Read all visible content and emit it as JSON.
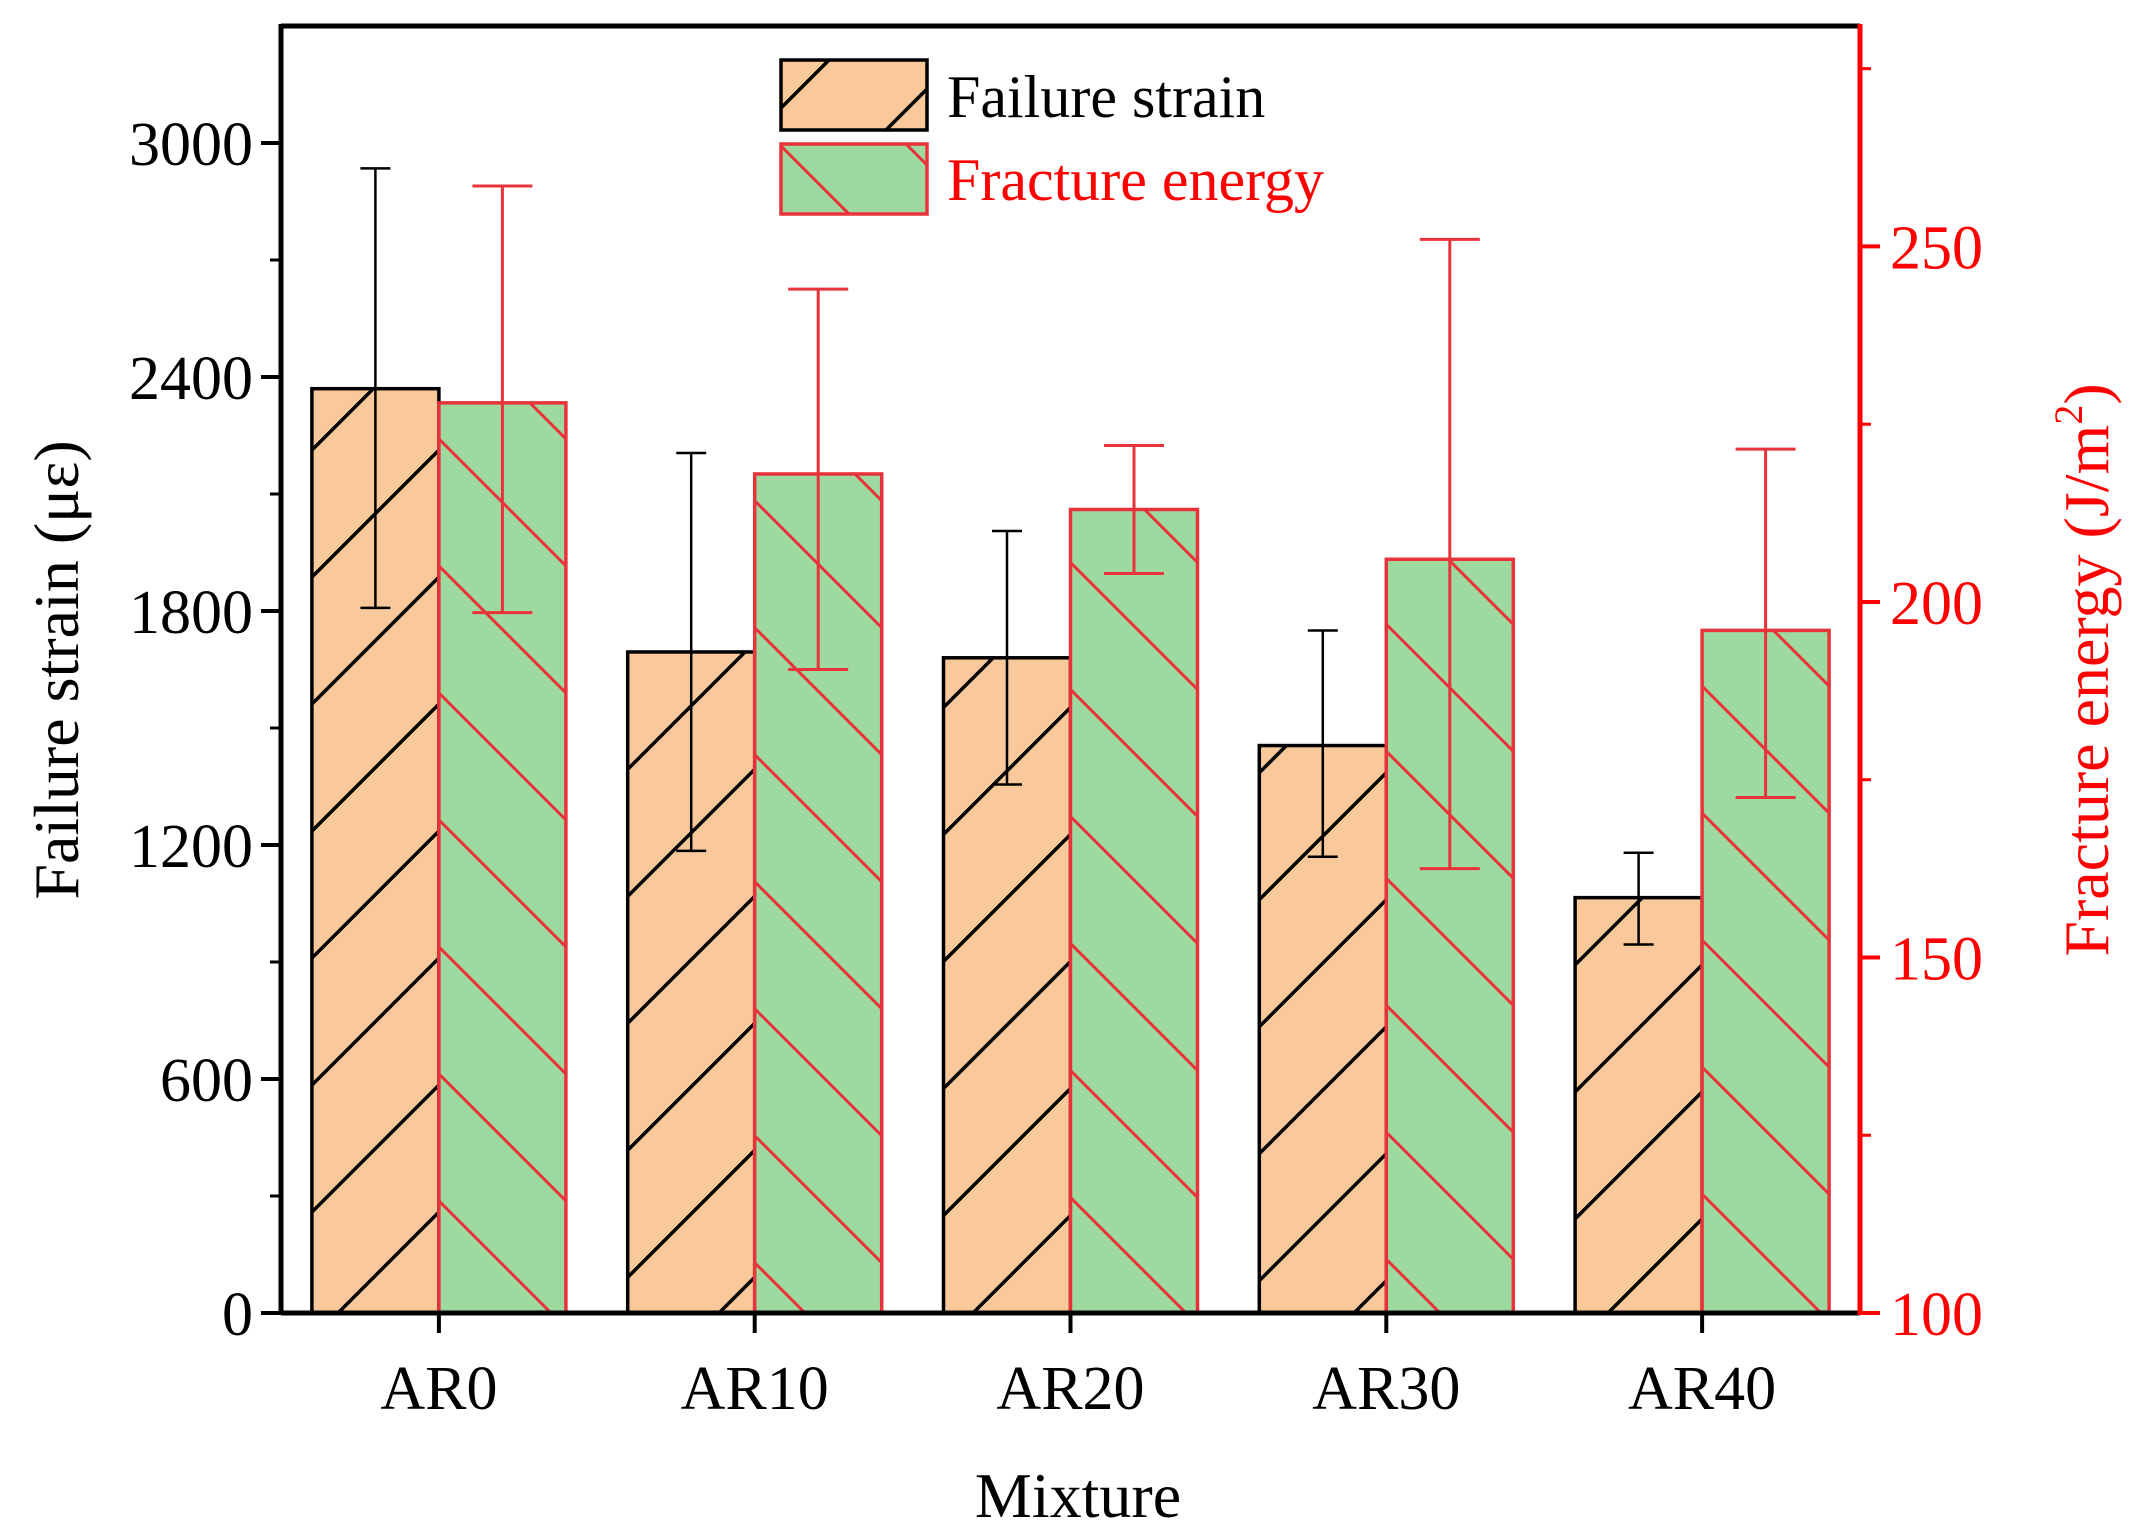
{
  "chart_data": {
    "type": "bar",
    "xlabel": "Mixture",
    "ylabel_left": "Failure strain (με)",
    "ylabel_right_main": "Fracture energy (J/m",
    "ylabel_right_sup": "2",
    "ylabel_right_close": ")",
    "categories": [
      "AR0",
      "AR10",
      "AR20",
      "AR30",
      "AR40"
    ],
    "y_left": {
      "range": [
        0,
        3300
      ],
      "ticks": [
        0,
        600,
        1200,
        1800,
        2400,
        3000
      ],
      "tick_labels": [
        "0",
        "600",
        "1200",
        "1800",
        "2400",
        "3000"
      ]
    },
    "y_right": {
      "range": [
        100,
        281
      ],
      "ticks": [
        100,
        150,
        200,
        250
      ],
      "tick_labels": [
        "100",
        "150",
        "200",
        "250"
      ]
    },
    "series": [
      {
        "name": "Failure strain",
        "axis": "left",
        "values": [
          2370,
          1695,
          1680,
          1455,
          1065
        ],
        "error_low": [
          1808,
          1185,
          1355,
          1170,
          945
        ],
        "error_high": [
          2935,
          2205,
          2005,
          1750,
          1180
        ]
      },
      {
        "name": "Fracture energy",
        "axis": "right",
        "values": [
          228,
          218,
          213,
          206,
          196
        ],
        "error_low": [
          198.5,
          190.5,
          204,
          162.5,
          172.5
        ],
        "error_high": [
          258.5,
          244,
          222,
          251,
          221.5
        ]
      }
    ],
    "legend": [
      "Failure strain",
      "Fracture energy"
    ],
    "colors": {
      "failure_fill": "#f9c89b",
      "fracture_fill": "#9ed99f",
      "failure_stroke": "#000000",
      "fracture_stroke": "#e8333a",
      "right_axis": "#ff0000",
      "left_axis": "#000000"
    }
  }
}
